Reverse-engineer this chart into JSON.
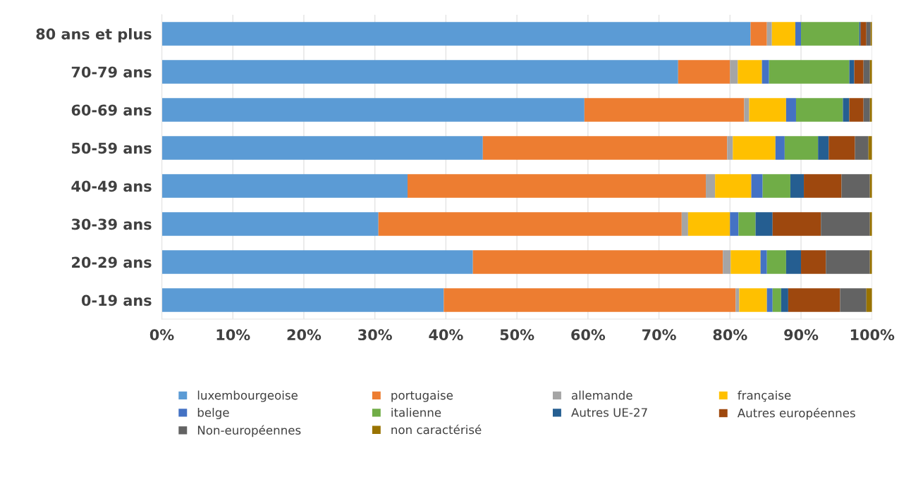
{
  "chart_data": {
    "type": "bar",
    "orientation": "horizontal",
    "stacked": true,
    "categories": [
      "80 ans et plus",
      "70-79 ans",
      "60-69 ans",
      "50-59 ans",
      "40-49 ans",
      "30-39 ans",
      "20-29 ans",
      "0-19 ans"
    ],
    "series": [
      {
        "name": "luxembourgeoise",
        "color": "#5b9bd5",
        "values": [
          82.9,
          72.7,
          59.5,
          45.2,
          34.6,
          30.5,
          43.8,
          39.7
        ]
      },
      {
        "name": "portugaise",
        "color": "#ed7d31",
        "values": [
          2.3,
          7.3,
          22.5,
          34.4,
          42.0,
          42.7,
          35.2,
          41.1
        ]
      },
      {
        "name": "allemande",
        "color": "#a5a5a5",
        "values": [
          0.7,
          1.1,
          0.7,
          0.8,
          1.3,
          0.9,
          1.1,
          0.5
        ]
      },
      {
        "name": "française",
        "color": "#ffc000",
        "values": [
          3.3,
          3.4,
          5.2,
          6.0,
          5.1,
          5.9,
          4.2,
          3.9
        ]
      },
      {
        "name": "belge",
        "color": "#4472c4",
        "values": [
          0.8,
          1.0,
          1.4,
          1.3,
          1.6,
          1.2,
          0.9,
          0.8
        ]
      },
      {
        "name": "italienne",
        "color": "#70ad47",
        "values": [
          8.2,
          11.3,
          6.6,
          4.7,
          3.9,
          2.4,
          2.7,
          1.2
        ]
      },
      {
        "name": "Autres UE-27",
        "color": "#255e91",
        "values": [
          0.2,
          0.7,
          0.9,
          1.5,
          1.9,
          2.4,
          2.1,
          1.0
        ]
      },
      {
        "name": "Autres européennes",
        "color": "#9e480e",
        "values": [
          0.8,
          1.3,
          2.0,
          3.7,
          5.3,
          6.8,
          3.5,
          7.3
        ]
      },
      {
        "name": "Non-européennes",
        "color": "#636363",
        "values": [
          0.6,
          0.9,
          0.9,
          1.9,
          4.0,
          6.9,
          6.2,
          3.7
        ]
      },
      {
        "name": "non caractérisé",
        "color": "#997300",
        "values": [
          0.2,
          0.3,
          0.3,
          0.5,
          0.3,
          0.3,
          0.3,
          0.8
        ]
      }
    ],
    "xlim": [
      0,
      100
    ],
    "xticks": [
      {
        "value": 0,
        "label": "0%"
      },
      {
        "value": 10,
        "label": "10%"
      },
      {
        "value": 20,
        "label": "20%"
      },
      {
        "value": 30,
        "label": "30%"
      },
      {
        "value": 40,
        "label": "40%"
      },
      {
        "value": 50,
        "label": "50%"
      },
      {
        "value": 60,
        "label": "60%"
      },
      {
        "value": 70,
        "label": "70%"
      },
      {
        "value": 80,
        "label": "80%"
      },
      {
        "value": 90,
        "label": "90%"
      },
      {
        "value": 100,
        "label": "100%"
      }
    ],
    "grid": "x",
    "legend": "bottom"
  }
}
